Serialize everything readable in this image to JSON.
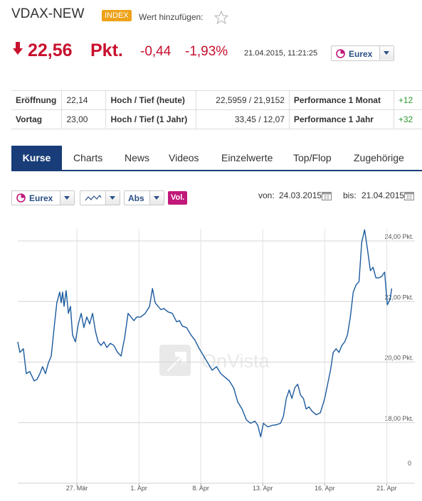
{
  "header": {
    "title": "VDAX-NEW",
    "badge": "INDEX",
    "watchlist_label": "Wert hinzufügen:"
  },
  "quote": {
    "price": "22,56",
    "unit": "Pkt.",
    "change": "-0,44",
    "change_percent": "-1,93%",
    "timestamp": "21.04.2015, 11:21:25",
    "exchange": "Eurex"
  },
  "stats": {
    "rows": [
      [
        "Eröffnung",
        "22,14",
        "Hoch / Tief (heute)",
        "22,5959 / 21,9152",
        "Performance 1 Monat",
        "+12"
      ],
      [
        "Vortag",
        "23,00",
        "Hoch / Tief (1 Jahr)",
        "33,45 / 12,07",
        "Performance 1 Jahr",
        "+32"
      ]
    ]
  },
  "tabs": [
    "Kurse",
    "Charts",
    "News",
    "Videos",
    "Einzelwerte",
    "Top/Flop",
    "Zugehörige"
  ],
  "controls": {
    "exchange": "Eurex",
    "scale": "Abs",
    "volume": "Vol.",
    "from_label": "von:",
    "from_date": "24.03.2015",
    "to_label": "bis:",
    "to_date": "21.04.2015"
  },
  "chart_data": {
    "type": "line",
    "watermark": "OnVista",
    "grid": true,
    "x": [
      0.14,
      0.24,
      0.41,
      0.55,
      0.72,
      0.93,
      1.07,
      1.21,
      1.34,
      1.48,
      1.62,
      1.76,
      1.9,
      2.03,
      2.17,
      2.24,
      2.31,
      2.38,
      2.48,
      2.59,
      2.69,
      2.79,
      2.93,
      3.07,
      3.21,
      3.34,
      3.48,
      3.62,
      3.76,
      3.9,
      4.03,
      4.17,
      4.31,
      4.45,
      4.62,
      4.79,
      4.97,
      5.14,
      5.31,
      5.48,
      5.62,
      5.76,
      5.9,
      6.1,
      6.31,
      6.52,
      6.66,
      6.79,
      6.93,
      7.07,
      7.21,
      7.41,
      7.62,
      7.83,
      7.97,
      8.1,
      8.31,
      8.52,
      8.72,
      8.93,
      9.14,
      9.34,
      9.55,
      9.76,
      9.97,
      10.17,
      10.38,
      10.59,
      10.79,
      11.0,
      11.21,
      11.41,
      11.62,
      11.76,
      11.9,
      12.03,
      12.24,
      12.45,
      12.66,
      12.86,
      13.0,
      13.14,
      13.28,
      13.41,
      13.55,
      13.69,
      13.83,
      13.97,
      14.1,
      14.24,
      14.38,
      14.59,
      14.79,
      15.0,
      15.14,
      15.28,
      15.41,
      15.55,
      15.69,
      15.83,
      15.97,
      16.1,
      16.24,
      16.38,
      16.52,
      16.66,
      16.79,
      16.93,
      17.07,
      17.21,
      17.34,
      17.48,
      17.62,
      17.76,
      17.9,
      18.03,
      18.17,
      18.24
    ],
    "series": [
      {
        "color": "#1b5a9e",
        "values": [
          20.67,
          20.32,
          20.44,
          19.62,
          19.69,
          19.38,
          19.43,
          19.62,
          19.85,
          19.62,
          19.97,
          20.2,
          21.14,
          21.96,
          22.31,
          21.96,
          22.31,
          21.84,
          22.36,
          21.61,
          21.84,
          20.9,
          20.67,
          21.26,
          21.61,
          21.14,
          21.49,
          21.26,
          21.61,
          21.02,
          20.67,
          20.55,
          20.67,
          20.48,
          20.62,
          20.55,
          20.32,
          20.2,
          20.79,
          21.61,
          21.49,
          21.37,
          21.49,
          21.49,
          21.61,
          21.84,
          22.43,
          21.96,
          21.84,
          21.73,
          21.77,
          21.66,
          21.61,
          21.33,
          21.37,
          21.19,
          21.14,
          20.9,
          20.72,
          20.44,
          20.2,
          19.97,
          19.73,
          19.85,
          19.62,
          19.5,
          19.38,
          19.15,
          18.68,
          18.45,
          18.09,
          17.98,
          18.05,
          17.91,
          17.53,
          17.98,
          17.86,
          17.91,
          17.93,
          17.98,
          18.21,
          18.8,
          19.08,
          18.8,
          19.15,
          19.27,
          18.91,
          18.8,
          18.45,
          18.52,
          18.38,
          18.26,
          18.33,
          18.8,
          19.27,
          19.73,
          20.32,
          20.44,
          20.32,
          20.55,
          20.67,
          20.9,
          21.49,
          22.31,
          22.55,
          22.66,
          23.95,
          24.37,
          23.72,
          23.02,
          23.13,
          22.78,
          22.78,
          22.83,
          22.97,
          21.89,
          22.08,
          22.43
        ]
      }
    ],
    "xlim": [
      0.14,
      18.4
    ],
    "xticks": [
      {
        "value": 3,
        "label": "27. Mär"
      },
      {
        "value": 6,
        "label": "1. Apr"
      },
      {
        "value": 9,
        "label": "8. Apr"
      },
      {
        "value": 12,
        "label": "13. Apr"
      },
      {
        "value": 15,
        "label": "16. Apr"
      },
      {
        "value": 18,
        "label": "21. Apr"
      }
    ],
    "ylim": [
      16,
      24.4
    ],
    "yticks": [
      {
        "value": 18,
        "label": "18,00 Pkt."
      },
      {
        "value": 20,
        "label": "20,00 Pkt."
      },
      {
        "value": 22,
        "label": "22,00 Pkt."
      },
      {
        "value": 24,
        "label": "24,00 Pkt."
      }
    ],
    "volume_axis_label": "0"
  }
}
